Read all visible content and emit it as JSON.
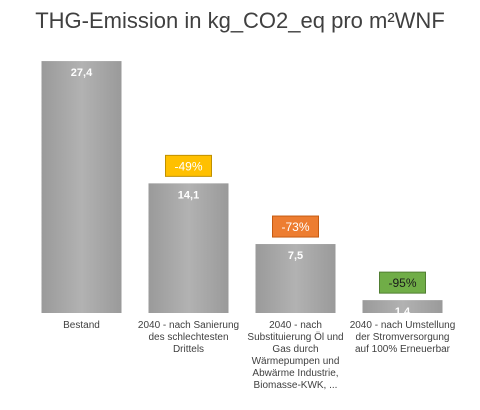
{
  "chart_data": {
    "type": "bar",
    "title": "THG-Emission in kg_CO2_eq pro m²WNF",
    "categories": [
      [
        "Bestand"
      ],
      [
        "2040 - nach Sanierung",
        "des schlechtesten",
        "Drittels"
      ],
      [
        "2040 - nach",
        "Substituierung Öl und",
        "Gas durch",
        "Wärmepumpen und",
        "Abwärme Industrie,",
        "Biomasse-KWK, ..."
      ],
      [
        "2040 - nach Umstellung",
        "der Stromversorgung",
        "auf 100% Erneuerbar"
      ]
    ],
    "values": [
      27.4,
      14.1,
      7.5,
      1.4
    ],
    "value_labels": [
      "27,4",
      "14,1",
      "7,5",
      "1,4"
    ],
    "annotations": [
      null,
      {
        "text": "-49%",
        "bg": "#ffc000",
        "border": "#bf9000",
        "color": "#ffffff"
      },
      {
        "text": "-73%",
        "bg": "#ed7d31",
        "border": "#c55a11",
        "color": "#ffffff"
      },
      {
        "text": "-95%",
        "bg": "#70ad47",
        "border": "#507e32",
        "color": "#1a1a1a"
      }
    ],
    "ylim": [
      0,
      30
    ],
    "grid": false,
    "legend": "none",
    "bar_color": "#a5a5a5"
  }
}
